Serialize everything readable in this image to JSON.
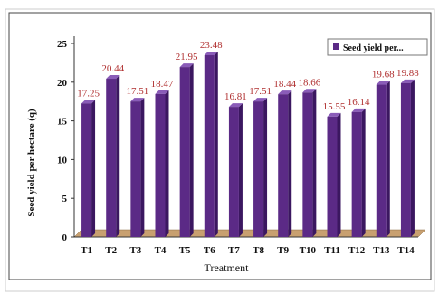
{
  "chart_data": {
    "type": "bar",
    "categories": [
      "T1",
      "T2",
      "T3",
      "T4",
      "T5",
      "T6",
      "T7",
      "T8",
      "T9",
      "T10",
      "T11",
      "T12",
      "T13",
      "T14"
    ],
    "series": [
      {
        "name": "Seed yield per...",
        "values": [
          17.25,
          20.44,
          17.51,
          18.47,
          21.95,
          23.48,
          16.81,
          17.51,
          18.44,
          18.66,
          15.55,
          16.14,
          19.68,
          19.88
        ],
        "data_labels": [
          "17.25",
          "20.44",
          "17.51",
          "18.47",
          "21.95",
          "23.48",
          "16.81",
          "17.51",
          "18.44",
          "18.66",
          "15.55",
          "16.14",
          "19.68",
          "19.88"
        ]
      }
    ],
    "xlabel": "Treatment",
    "ylabel": "Seed yield per hectare (q)",
    "ylim": [
      0,
      25
    ],
    "yticks": [
      "0",
      "5",
      "10",
      "15",
      "20",
      "25"
    ],
    "grid": false,
    "legend_position": "top-right",
    "bar_color": "#5b2a86",
    "bar_side_color": "#3b1760",
    "bar_top_color": "#8a5cb8",
    "floor_color": "#c8a070",
    "data_label_color": "#b03030"
  }
}
